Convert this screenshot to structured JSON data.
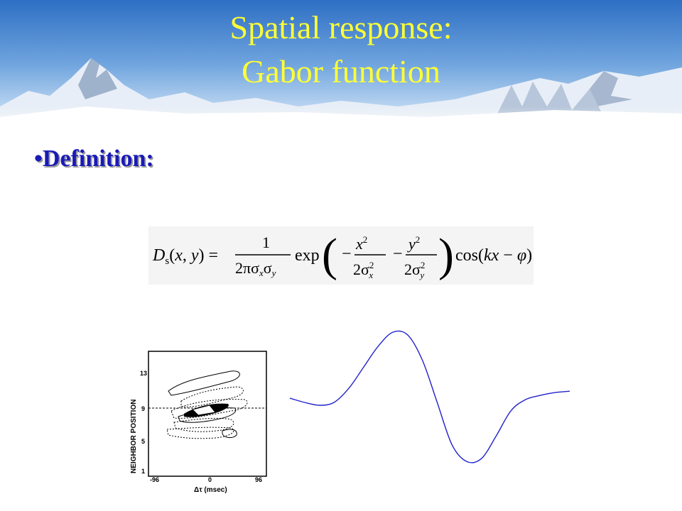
{
  "slide": {
    "title_line1": "Spatial response:",
    "title_line2": "Gabor function",
    "bullet_marker": "•",
    "bullet_text": "Definition:",
    "title_color": "#ffff33",
    "bullet_color": "#1a1ab8"
  },
  "formula": {
    "lhs": "Ds(x, y) =",
    "numerator": "1",
    "denominator": "2πσxσy",
    "func": "exp",
    "x_term_num": "x2",
    "x_term_den": "2σx2",
    "y_term_num": "y2",
    "y_term_den": "2σy2",
    "cos_term": "cos(kx − φ)"
  },
  "figure_left": {
    "ylabel": "NEIGHBOR POSITION",
    "yticks": [
      "13",
      "9",
      "5",
      "1"
    ],
    "xticks": [
      "-96",
      "0",
      "96"
    ],
    "xlabel": "Δτ (msec)"
  },
  "figure_right": {
    "line_color": "#2222cc",
    "curve_y": [
      0.47,
      0.5,
      0.52,
      0.5,
      0.4,
      0.25,
      0.1,
      0.0,
      0.02,
      0.2,
      0.5,
      0.8,
      0.92,
      0.9,
      0.74,
      0.56,
      0.48,
      0.45,
      0.43,
      0.42
    ]
  }
}
